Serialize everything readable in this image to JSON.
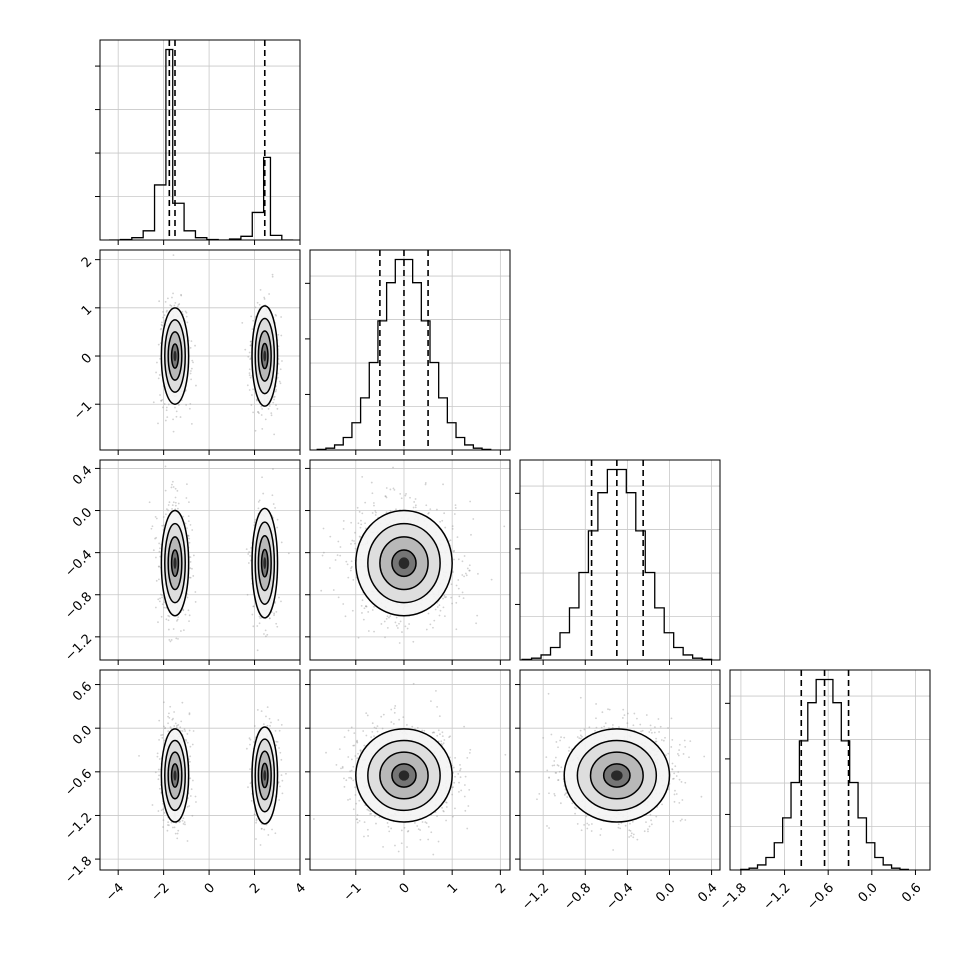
{
  "chart_data": {
    "type": "corner",
    "title": "",
    "grid": true,
    "parameters": [
      {
        "index": 0,
        "range": [
          -4.8,
          4.0
        ],
        "ticks": [
          "-4",
          "-2",
          "0",
          "2",
          "4"
        ],
        "tick_values": [
          -4,
          -2,
          0,
          2,
          4
        ],
        "quantiles": [
          -1.75,
          -1.5,
          2.45
        ],
        "histogram": {
          "bins": [
            [
              -4.4,
              -3.9
            ],
            [
              -3.9,
              -3.4
            ],
            [
              -3.4,
              -2.9
            ],
            [
              -2.9,
              -2.4
            ],
            [
              -2.4,
              -1.9
            ],
            [
              -1.9,
              -1.6
            ],
            [
              -1.6,
              -1.1
            ],
            [
              -1.1,
              -0.6
            ],
            [
              -0.6,
              -0.1
            ],
            [
              -0.1,
              0.4
            ],
            [
              0.4,
              0.9
            ],
            [
              0.9,
              1.4
            ],
            [
              1.4,
              1.9
            ],
            [
              1.9,
              2.4
            ],
            [
              2.4,
              2.7
            ],
            [
              2.7,
              3.2
            ],
            [
              3.2,
              3.7
            ]
          ],
          "counts": [
            0.0,
            0.01,
            0.05,
            0.2,
            1.2,
            4.15,
            0.8,
            0.2,
            0.05,
            0.01,
            0.0,
            0.02,
            0.08,
            0.6,
            1.8,
            0.1,
            0.0
          ]
        },
        "modes": [
          {
            "center": -1.5,
            "sigma": 0.3,
            "levels": [
              1.2,
              0.85,
              0.55,
              0.3
            ]
          },
          {
            "center": 2.45,
            "sigma": 0.27,
            "levels": [
              0.95,
              0.6,
              0.3,
              0.1
            ]
          }
        ]
      },
      {
        "index": 1,
        "range": [
          -1.95,
          2.2
        ],
        "ticks": [
          "-1",
          "0",
          "1",
          "2"
        ],
        "tick_values": [
          -1,
          0,
          1,
          2
        ],
        "quantiles": [
          -0.5,
          0.0,
          0.5
        ],
        "center": 0.0,
        "sigma": 0.5
      },
      {
        "index": 2,
        "range": [
          -1.42,
          0.48
        ],
        "ticks": [
          "-1.2",
          "-0.8",
          "-0.4",
          "0.0",
          "0.4"
        ],
        "tick_values": [
          -1.2,
          -0.8,
          -0.4,
          0.0,
          0.4
        ],
        "quantiles": [
          -0.74,
          -0.5,
          -0.25
        ],
        "center": -0.5,
        "sigma": 0.25
      },
      {
        "index": 3,
        "range": [
          -1.95,
          0.8
        ],
        "ticks": [
          "-1.8",
          "-1.2",
          "-0.6",
          "0.0",
          "0.6"
        ],
        "tick_values": [
          -1.8,
          -1.2,
          -0.6,
          0.0,
          0.6
        ],
        "quantiles": [
          -0.97,
          -0.65,
          -0.32
        ],
        "center": -0.65,
        "sigma": 0.32
      }
    ]
  }
}
